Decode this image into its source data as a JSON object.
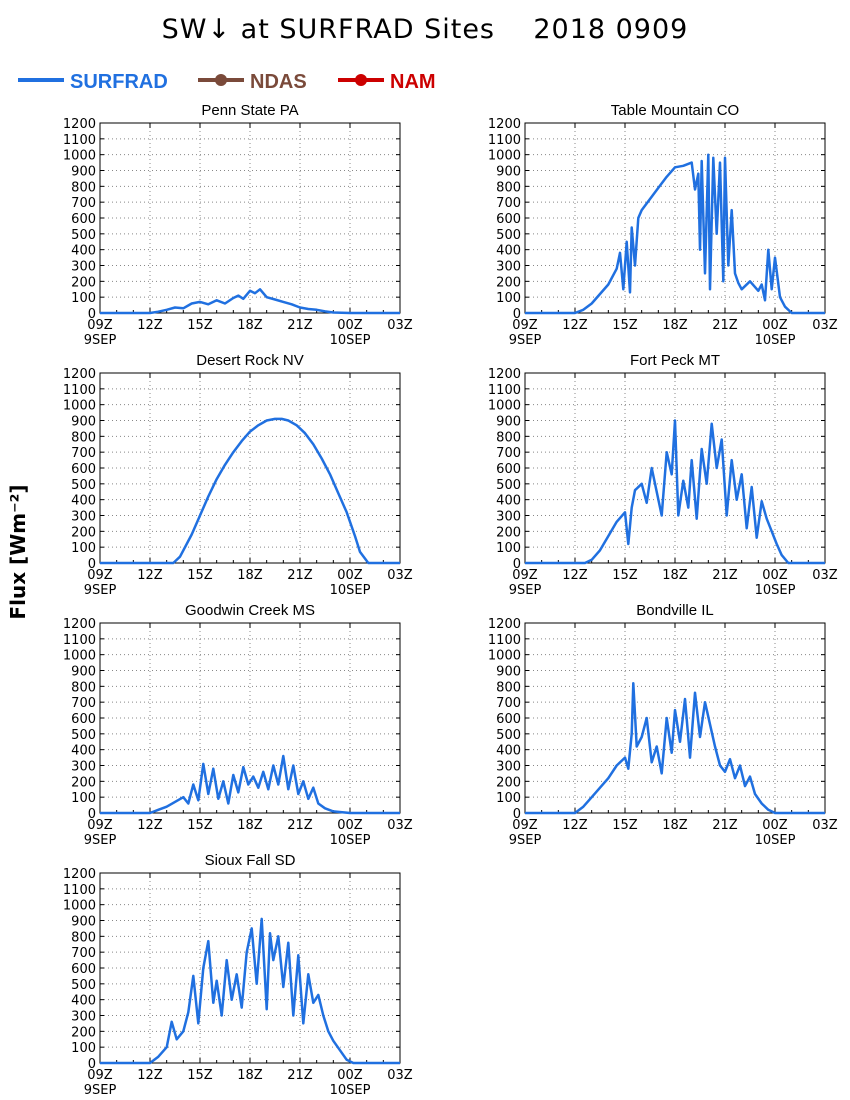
{
  "title": "SW↓ at SURFRAD Sites    2018 0909",
  "ylabel": "Flux [Wm⁻²]",
  "legend": [
    {
      "label": "SURFRAD",
      "color": "#2070e0",
      "marker": false
    },
    {
      "label": "NDAS",
      "color": "#7a4a3a",
      "marker": true
    },
    {
      "label": "NAM",
      "color": "#cc0000",
      "marker": true
    }
  ],
  "chart_data": [
    {
      "type": "line",
      "title": "Penn State PA",
      "x_ticks": [
        "09Z",
        "12Z",
        "15Z",
        "18Z",
        "21Z",
        "00Z",
        "03Z"
      ],
      "x_date_labels": {
        "09Z": "9SEP",
        "00Z": "10SEP"
      },
      "y_ticks": [
        0,
        100,
        200,
        300,
        400,
        500,
        600,
        700,
        800,
        900,
        1000,
        1100,
        1200
      ],
      "ylim": [
        0,
        1200
      ],
      "grid": true,
      "series": [
        {
          "name": "SURFRAD",
          "x": [
            9,
            12,
            12.5,
            13,
            13.5,
            14,
            14.5,
            15,
            15.5,
            16,
            16.5,
            17,
            17.3,
            17.6,
            18,
            18.3,
            18.6,
            19,
            19.5,
            20,
            20.5,
            21,
            21.5,
            22,
            22.5,
            23,
            24,
            27
          ],
          "y": [
            0,
            0,
            8,
            20,
            35,
            30,
            60,
            70,
            55,
            80,
            60,
            95,
            110,
            90,
            140,
            125,
            150,
            100,
            85,
            70,
            55,
            35,
            25,
            20,
            10,
            3,
            0,
            0
          ]
        }
      ]
    },
    {
      "type": "line",
      "title": "Table Mountain CO",
      "x_ticks": [
        "09Z",
        "12Z",
        "15Z",
        "18Z",
        "21Z",
        "00Z",
        "03Z"
      ],
      "x_date_labels": {
        "09Z": "9SEP",
        "00Z": "10SEP"
      },
      "y_ticks": [
        0,
        100,
        200,
        300,
        400,
        500,
        600,
        700,
        800,
        900,
        1000,
        1100,
        1200
      ],
      "ylim": [
        0,
        1200
      ],
      "grid": true,
      "series": [
        {
          "name": "SURFRAD",
          "x": [
            9,
            12,
            12.5,
            13,
            13.5,
            14,
            14.5,
            14.7,
            14.9,
            15.1,
            15.3,
            15.4,
            15.6,
            15.8,
            16,
            16.5,
            17,
            17.5,
            18,
            18.5,
            19,
            19.2,
            19.4,
            19.5,
            19.6,
            19.8,
            20,
            20.1,
            20.3,
            20.5,
            20.7,
            20.9,
            21,
            21.2,
            21.4,
            21.6,
            21.8,
            22,
            22.5,
            23,
            23.2,
            23.4,
            23.6,
            23.8,
            24,
            24.3,
            24.6,
            25,
            27
          ],
          "y": [
            0,
            0,
            20,
            60,
            120,
            180,
            280,
            380,
            150,
            450,
            130,
            540,
            300,
            600,
            650,
            720,
            790,
            860,
            920,
            930,
            950,
            780,
            880,
            400,
            960,
            250,
            1000,
            150,
            980,
            500,
            950,
            200,
            980,
            300,
            650,
            250,
            190,
            150,
            200,
            140,
            180,
            80,
            400,
            150,
            350,
            100,
            40,
            0,
            0
          ]
        }
      ]
    },
    {
      "type": "line",
      "title": "Desert Rock NV",
      "x_ticks": [
        "09Z",
        "12Z",
        "15Z",
        "18Z",
        "21Z",
        "00Z",
        "03Z"
      ],
      "x_date_labels": {
        "09Z": "9SEP",
        "00Z": "10SEP"
      },
      "y_ticks": [
        0,
        100,
        200,
        300,
        400,
        500,
        600,
        700,
        800,
        900,
        1000,
        1100,
        1200
      ],
      "ylim": [
        0,
        1200
      ],
      "grid": true,
      "series": [
        {
          "name": "SURFRAD",
          "x": [
            9,
            13.4,
            13.8,
            14.5,
            15,
            15.5,
            16,
            16.5,
            17,
            17.5,
            18,
            18.5,
            19,
            19.5,
            19.9,
            20.3,
            20.8,
            21.3,
            21.8,
            22.3,
            22.8,
            23.3,
            23.8,
            24.3,
            24.6,
            25.1,
            27
          ],
          "y": [
            0,
            0,
            40,
            180,
            300,
            420,
            530,
            620,
            700,
            770,
            830,
            870,
            900,
            910,
            910,
            900,
            870,
            820,
            750,
            660,
            560,
            440,
            320,
            170,
            70,
            0,
            0
          ]
        }
      ]
    },
    {
      "type": "line",
      "title": "Fort Peck MT",
      "x_ticks": [
        "09Z",
        "12Z",
        "15Z",
        "18Z",
        "21Z",
        "00Z",
        "03Z"
      ],
      "x_date_labels": {
        "09Z": "9SEP",
        "00Z": "10SEP"
      },
      "y_ticks": [
        0,
        100,
        200,
        300,
        400,
        500,
        600,
        700,
        800,
        900,
        1000,
        1100,
        1200
      ],
      "ylim": [
        0,
        1200
      ],
      "grid": true,
      "series": [
        {
          "name": "SURFRAD",
          "x": [
            9,
            12.6,
            13,
            13.5,
            14,
            14.5,
            15,
            15.2,
            15.4,
            15.6,
            16,
            16.3,
            16.6,
            16.9,
            17.2,
            17.5,
            17.8,
            18,
            18.2,
            18.5,
            18.8,
            19,
            19.3,
            19.6,
            19.9,
            20.2,
            20.5,
            20.8,
            21.1,
            21.4,
            21.7,
            22,
            22.3,
            22.6,
            22.9,
            23.2,
            23.5,
            23.8,
            24.1,
            24.4,
            24.8,
            27
          ],
          "y": [
            0,
            0,
            20,
            80,
            170,
            260,
            320,
            120,
            350,
            460,
            500,
            380,
            600,
            450,
            300,
            700,
            560,
            900,
            300,
            520,
            350,
            650,
            280,
            720,
            500,
            880,
            600,
            780,
            300,
            650,
            400,
            560,
            220,
            480,
            160,
            390,
            280,
            200,
            120,
            50,
            0,
            0
          ]
        }
      ]
    },
    {
      "type": "line",
      "title": "Goodwin Creek MS",
      "x_ticks": [
        "09Z",
        "12Z",
        "15Z",
        "18Z",
        "21Z",
        "00Z",
        "03Z"
      ],
      "x_date_labels": {
        "09Z": "9SEP",
        "00Z": "10SEP"
      },
      "y_ticks": [
        0,
        100,
        200,
        300,
        400,
        500,
        600,
        700,
        800,
        900,
        1000,
        1100,
        1200
      ],
      "ylim": [
        0,
        1200
      ],
      "grid": true,
      "series": [
        {
          "name": "SURFRAD",
          "x": [
            9,
            12,
            12.5,
            13,
            13.5,
            14,
            14.3,
            14.6,
            14.9,
            15.2,
            15.5,
            15.8,
            16.1,
            16.4,
            16.7,
            17,
            17.3,
            17.6,
            17.9,
            18.2,
            18.5,
            18.8,
            19.1,
            19.4,
            19.7,
            20,
            20.3,
            20.6,
            20.9,
            21.2,
            21.5,
            21.8,
            22.1,
            22.5,
            23,
            24,
            27
          ],
          "y": [
            0,
            0,
            20,
            40,
            70,
            100,
            60,
            180,
            80,
            310,
            120,
            280,
            90,
            200,
            60,
            240,
            130,
            290,
            180,
            230,
            160,
            260,
            150,
            300,
            180,
            360,
            150,
            300,
            120,
            200,
            90,
            160,
            60,
            30,
            10,
            0,
            0
          ]
        }
      ]
    },
    {
      "type": "line",
      "title": "Bondville IL",
      "x_ticks": [
        "09Z",
        "12Z",
        "15Z",
        "18Z",
        "21Z",
        "00Z",
        "03Z"
      ],
      "x_date_labels": {
        "09Z": "9SEP",
        "00Z": "10SEP"
      },
      "y_ticks": [
        0,
        100,
        200,
        300,
        400,
        500,
        600,
        700,
        800,
        900,
        1000,
        1100,
        1200
      ],
      "ylim": [
        0,
        1200
      ],
      "grid": true,
      "series": [
        {
          "name": "SURFRAD",
          "x": [
            9,
            12,
            12.5,
            13,
            13.5,
            14,
            14.5,
            15,
            15.2,
            15.4,
            15.5,
            15.7,
            16,
            16.3,
            16.6,
            16.9,
            17.2,
            17.5,
            17.8,
            18,
            18.3,
            18.6,
            18.9,
            19.2,
            19.5,
            19.8,
            20.1,
            20.4,
            20.7,
            21,
            21.3,
            21.6,
            21.9,
            22.2,
            22.5,
            22.8,
            23.2,
            23.6,
            24,
            27
          ],
          "y": [
            0,
            0,
            40,
            100,
            160,
            220,
            300,
            350,
            280,
            500,
            820,
            420,
            480,
            600,
            320,
            420,
            250,
            600,
            380,
            650,
            450,
            720,
            350,
            760,
            480,
            700,
            560,
            420,
            300,
            260,
            340,
            220,
            300,
            170,
            230,
            120,
            60,
            20,
            0,
            0
          ]
        }
      ]
    },
    {
      "type": "line",
      "title": "Sioux Fall SD",
      "x_ticks": [
        "09Z",
        "12Z",
        "15Z",
        "18Z",
        "21Z",
        "00Z",
        "03Z"
      ],
      "x_date_labels": {
        "09Z": "9SEP",
        "00Z": "10SEP"
      },
      "y_ticks": [
        0,
        100,
        200,
        300,
        400,
        500,
        600,
        700,
        800,
        900,
        1000,
        1100,
        1200
      ],
      "ylim": [
        0,
        1200
      ],
      "grid": true,
      "series": [
        {
          "name": "SURFRAD",
          "x": [
            9,
            12,
            12.5,
            13,
            13.3,
            13.6,
            14,
            14.3,
            14.6,
            14.9,
            15.2,
            15.5,
            15.8,
            16,
            16.3,
            16.6,
            16.9,
            17.2,
            17.5,
            17.8,
            18.1,
            18.4,
            18.7,
            19,
            19.2,
            19.4,
            19.7,
            20,
            20.3,
            20.6,
            20.9,
            21.2,
            21.5,
            21.8,
            22.1,
            22.4,
            22.7,
            23,
            23.4,
            23.8,
            24.2,
            27
          ],
          "y": [
            0,
            0,
            40,
            100,
            260,
            150,
            200,
            320,
            550,
            250,
            600,
            770,
            380,
            520,
            300,
            650,
            400,
            560,
            350,
            700,
            850,
            500,
            910,
            340,
            820,
            650,
            800,
            480,
            760,
            300,
            680,
            250,
            560,
            380,
            430,
            300,
            200,
            140,
            80,
            20,
            0,
            0
          ]
        }
      ]
    }
  ]
}
